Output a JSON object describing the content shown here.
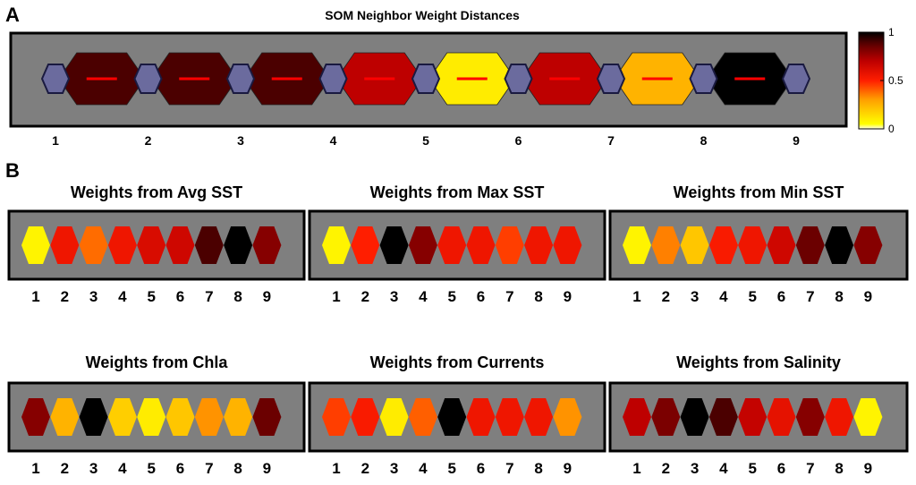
{
  "figure": {
    "panel_a_letter": "A",
    "panel_b_letter": "B"
  },
  "chart_data": [
    {
      "type": "heatmap",
      "title": "SOM Neighbor Weight Distances",
      "neurons": [
        "1",
        "2",
        "3",
        "4",
        "5",
        "6",
        "7",
        "8",
        "9"
      ],
      "neighbor_distances": [
        0.9,
        0.9,
        0.9,
        0.7,
        0.1,
        0.7,
        0.25,
        1.0
      ],
      "neuron_color": "#6b6b9e",
      "colorbar": {
        "ticks": [
          "0",
          "0.5",
          "1"
        ],
        "range": [
          0,
          1
        ],
        "colormap": "hot-reversed (white-yellow-red-black)"
      },
      "background": "#7f7f7f"
    },
    {
      "type": "heatmap",
      "title": "Weights from Avg SST",
      "neurons": [
        "1",
        "2",
        "3",
        "4",
        "5",
        "6",
        "7",
        "8",
        "9"
      ],
      "values": [
        0.08,
        0.55,
        0.38,
        0.55,
        0.62,
        0.65,
        0.9,
        1.0,
        0.8
      ]
    },
    {
      "type": "heatmap",
      "title": "Weights from Max SST",
      "neurons": [
        "1",
        "2",
        "3",
        "4",
        "5",
        "6",
        "7",
        "8",
        "9"
      ],
      "values": [
        0.08,
        0.5,
        1.0,
        0.8,
        0.55,
        0.55,
        0.45,
        0.55,
        0.55
      ]
    },
    {
      "type": "heatmap",
      "title": "Weights from Min SST",
      "neurons": [
        "1",
        "2",
        "3",
        "4",
        "5",
        "6",
        "7",
        "8",
        "9"
      ],
      "values": [
        0.08,
        0.35,
        0.2,
        0.52,
        0.55,
        0.65,
        0.85,
        1.0,
        0.8
      ]
    },
    {
      "type": "heatmap",
      "title": "Weights from Chla",
      "neurons": [
        "1",
        "2",
        "3",
        "4",
        "5",
        "6",
        "7",
        "8",
        "9"
      ],
      "values": [
        0.8,
        0.25,
        1.0,
        0.18,
        0.1,
        0.2,
        0.32,
        0.25,
        0.85
      ]
    },
    {
      "type": "heatmap",
      "title": "Weights from Currents",
      "neurons": [
        "1",
        "2",
        "3",
        "4",
        "5",
        "6",
        "7",
        "8",
        "9"
      ],
      "values": [
        0.45,
        0.52,
        0.1,
        0.4,
        1.0,
        0.55,
        0.55,
        0.55,
        0.32
      ]
    },
    {
      "type": "heatmap",
      "title": "Weights from Salinity",
      "neurons": [
        "1",
        "2",
        "3",
        "4",
        "5",
        "6",
        "7",
        "8",
        "9"
      ],
      "values": [
        0.7,
        0.82,
        1.0,
        0.9,
        0.68,
        0.58,
        0.8,
        0.55,
        0.08
      ]
    }
  ]
}
